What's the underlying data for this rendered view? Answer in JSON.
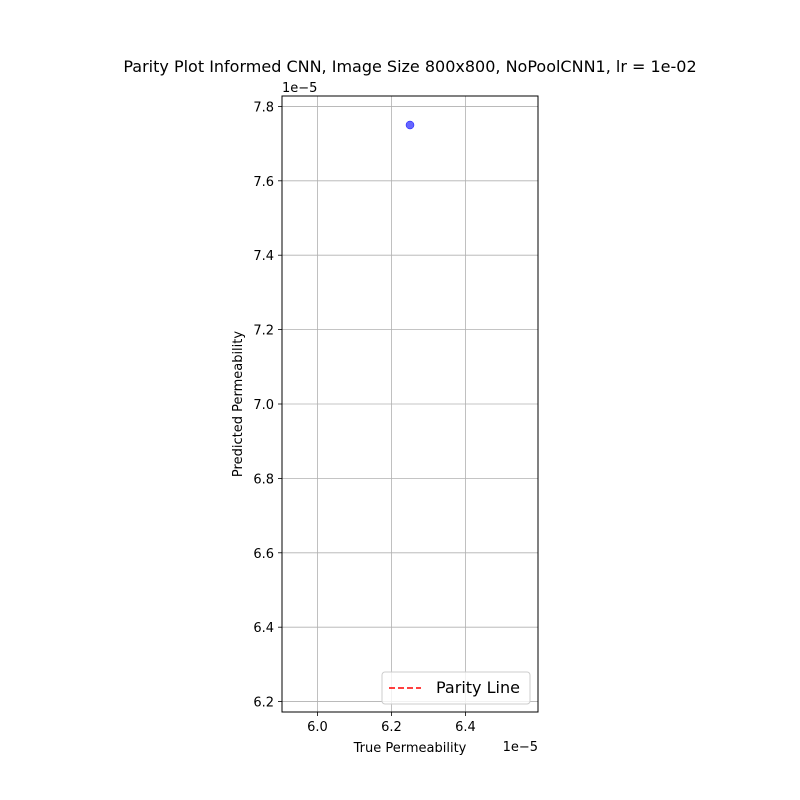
{
  "chart_data": {
    "type": "scatter",
    "title": "Parity Plot Informed CNN, Image Size 800x800, NoPoolCNN1, lr = 1e-02",
    "xlabel": "True Permeability",
    "ylabel": "Predicted Permeability",
    "x_offset_label": "1e−5",
    "y_offset_label": "1e−5",
    "xlim": [
      5.904,
      6.596
    ],
    "ylim": [
      6.172,
      7.828
    ],
    "x_ticks": [
      6.0,
      6.2,
      6.4
    ],
    "x_tick_labels": [
      "6.0",
      "6.2",
      "6.4"
    ],
    "y_ticks": [
      6.2,
      6.4,
      6.6,
      6.8,
      7.0,
      7.2,
      7.4,
      7.6,
      7.8
    ],
    "y_tick_labels": [
      "6.2",
      "6.4",
      "6.6",
      "6.8",
      "7.0",
      "7.2",
      "7.4",
      "7.6",
      "7.8"
    ],
    "grid": true,
    "legend_position": "lower-right",
    "legend": [
      {
        "label": "Parity Line",
        "color": "#ff0000",
        "style": "dashed"
      }
    ],
    "points": [
      {
        "x": 6.25,
        "y": 7.75
      }
    ],
    "point_color": "#0000ff",
    "point_alpha": 0.6
  }
}
